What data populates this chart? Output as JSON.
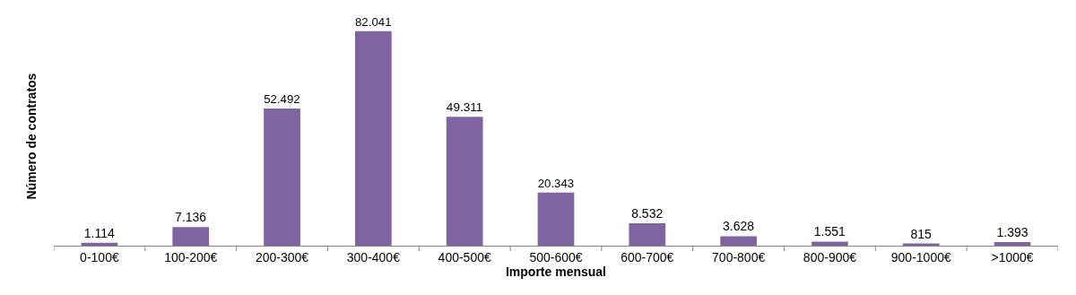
{
  "chart_data": {
    "type": "bar",
    "xlabel": "Importe mensual",
    "ylabel": "Número de contratos",
    "categories": [
      "0-100€",
      "100-200€",
      "200-300€",
      "300-400€",
      "400-500€",
      "500-600€",
      "600-700€",
      "700-800€",
      "800-900€",
      "900-1000€",
      ">1000€"
    ],
    "values": [
      1114,
      7136,
      52492,
      82041,
      49311,
      20343,
      8532,
      3628,
      1551,
      815,
      1393
    ],
    "value_labels": [
      "1.114",
      "7.136",
      "52.492",
      "82.041",
      "49.311",
      "20.343",
      "8.532",
      "3.628",
      "1.551",
      "815",
      "1.393"
    ],
    "color": "#8064a2",
    "legend": false
  }
}
